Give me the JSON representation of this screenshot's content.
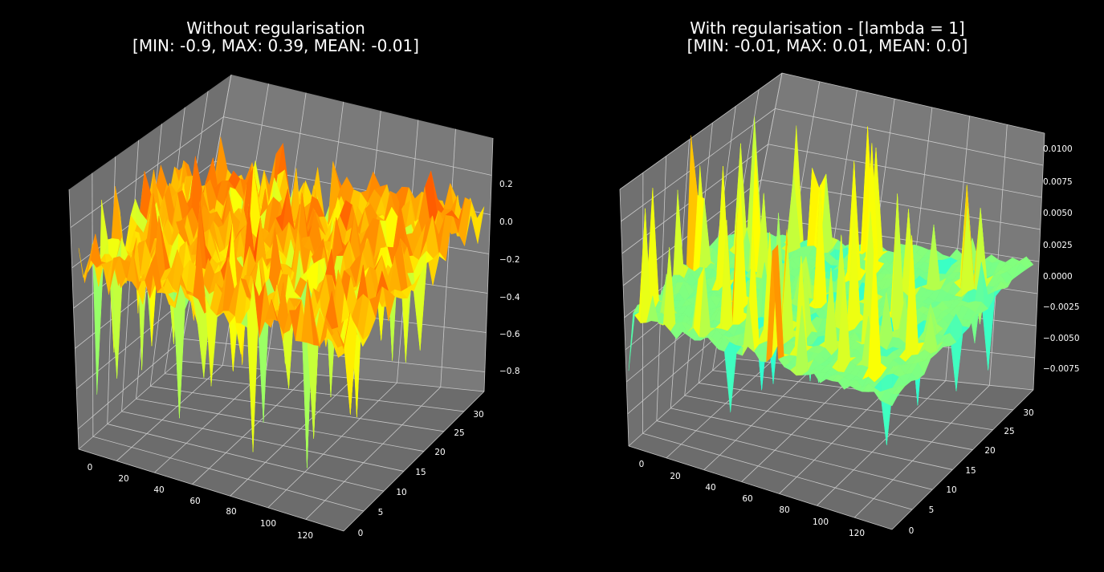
{
  "colors": {
    "background": "#000000",
    "pane_left": "#707070",
    "pane_back": "#7a7a7a",
    "pane_floor": "#6c6c6c",
    "grid": "#d8d8d8",
    "text": "#ffffff"
  },
  "colormap": "jet",
  "chart_data": [
    {
      "type": "surface",
      "title_line1": "Without regularisation",
      "title_line2": "[MIN: -0.9, MAX: 0.39, MEAN: -0.01]",
      "stats": {
        "min": -0.9,
        "max": 0.39,
        "mean": -0.01
      },
      "x_range": [
        0,
        127
      ],
      "y_range": [
        0,
        31
      ],
      "zlim": [
        -0.9,
        0.39
      ],
      "x_ticks": [
        "0",
        "20",
        "40",
        "60",
        "80",
        "100",
        "120"
      ],
      "y_ticks": [
        "0",
        "5",
        "10",
        "15",
        "20",
        "25",
        "30"
      ],
      "z_ticks": [
        "0.2",
        "0.0",
        "−0.2",
        "−0.4",
        "−0.6",
        "−0.8"
      ],
      "z_tick_values": [
        0.2,
        0.0,
        -0.2,
        -0.4,
        -0.6,
        -0.8
      ],
      "grid": true
    },
    {
      "type": "surface",
      "title_line1": "With regularisation - [lambda = 1]",
      "title_line2": "[MIN: -0.01, MAX: 0.01, MEAN: 0.0]",
      "stats": {
        "min": -0.01,
        "max": 0.01,
        "mean": 0.0
      },
      "x_range": [
        0,
        127
      ],
      "y_range": [
        0,
        31
      ],
      "zlim": [
        -0.01,
        0.01
      ],
      "x_ticks": [
        "0",
        "20",
        "40",
        "60",
        "80",
        "100",
        "120"
      ],
      "y_ticks": [
        "0",
        "5",
        "10",
        "15",
        "20",
        "25",
        "30"
      ],
      "z_ticks": [
        "0.0100",
        "0.0075",
        "0.0050",
        "0.0025",
        "0.0000",
        "−0.0025",
        "−0.0050",
        "−0.0075"
      ],
      "z_tick_values": [
        0.01,
        0.0075,
        0.005,
        0.0025,
        0.0,
        -0.0025,
        -0.005,
        -0.0075
      ],
      "grid": true
    }
  ]
}
